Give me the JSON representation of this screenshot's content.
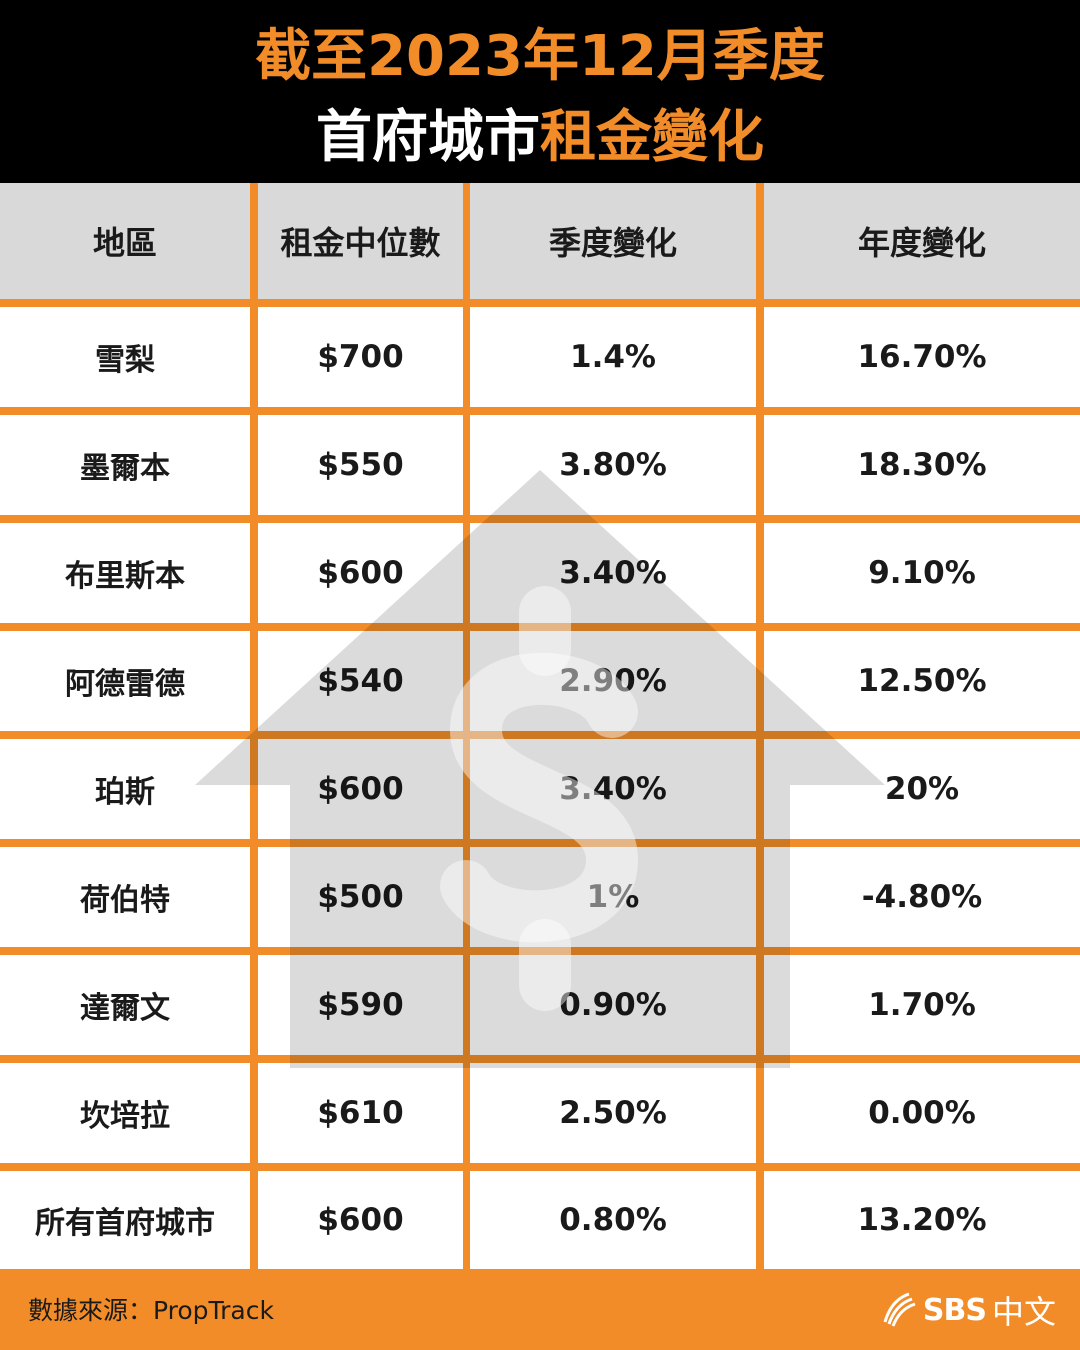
{
  "title": {
    "line1": "截至2023年12月季度",
    "line2_white": "首府城市",
    "line2_orange": "租金變化"
  },
  "colors": {
    "accent": "#F28C28",
    "header_bg": "#000000",
    "column_header_bg": "#D9D9D9"
  },
  "chart_data": {
    "type": "table",
    "columns": [
      "地區",
      "租金中位數",
      "季度變化",
      "年度變化"
    ],
    "rows": [
      [
        "雪梨",
        "$700",
        "1.4%",
        "16.70%"
      ],
      [
        "墨爾本",
        "$550",
        "3.80%",
        "18.30%"
      ],
      [
        "布里斯本",
        "$600",
        "3.40%",
        "9.10%"
      ],
      [
        "阿德雷德",
        "$540",
        "2.90%",
        "12.50%"
      ],
      [
        "珀斯",
        "$600",
        "3.40%",
        "20%"
      ],
      [
        "荷伯特",
        "$500",
        "1%",
        "-4.80%"
      ],
      [
        "達爾文",
        "$590",
        "0.90%",
        "1.70%"
      ],
      [
        "坎培拉",
        "$610",
        "2.50%",
        "0.00%"
      ],
      [
        "所有首府城市",
        "$600",
        "0.80%",
        "13.20%"
      ]
    ]
  },
  "footer": {
    "source": "數據來源：PropTrack",
    "brand_logo": "SBS",
    "brand_cn": "中文",
    "brand_icon": "sbs-wave-icon"
  },
  "watermark_icon": "house-dollar-arrow-icon"
}
